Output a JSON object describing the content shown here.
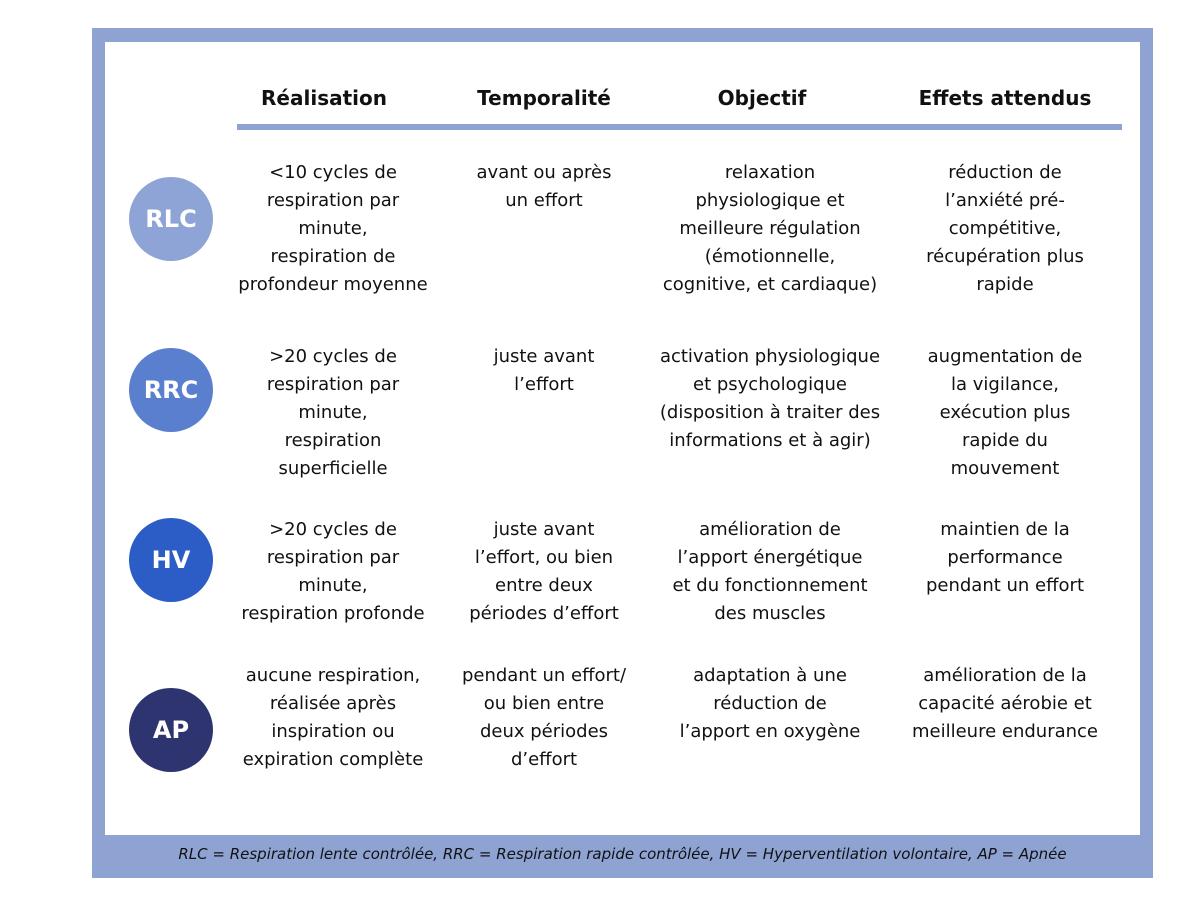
{
  "headers": [
    "Réalisation",
    "Temporalité",
    "Objectif",
    "Effets attendus"
  ],
  "rows": [
    {
      "abbr": "RLC",
      "color": "#8ea4d6",
      "realisation": "<10 cycles de\nrespiration par\nminute,\nrespiration de\nprofondeur moyenne",
      "temporalite": "avant ou après\nun effort",
      "objectif": "relaxation\nphysiologique et\nmeilleure régulation\n(émotionnelle,\ncognitive, et cardiaque)",
      "effets": "réduction de\nl’anxiété pré-\ncompétitive,\nrécupération plus\nrapide"
    },
    {
      "abbr": "RRC",
      "color": "#5b7fcf",
      "realisation": ">20 cycles de\nrespiration par\nminute,\nrespiration\nsuperficielle",
      "temporalite": "juste avant\nl’effort",
      "objectif": "activation physiologique\net psychologique\n(disposition à traiter des\ninformations et à agir)",
      "effets": "augmentation de\nla vigilance,\nexécution plus\nrapide du\nmouvement"
    },
    {
      "abbr": "HV",
      "color": "#2c5cc5",
      "realisation": ">20 cycles de\nrespiration par\nminute,\nrespiration profonde",
      "temporalite": "juste avant\nl’effort, ou bien\nentre deux\npériodes d’effort",
      "objectif": "amélioration de\nl’apport énergétique\net du fonctionnement\ndes muscles",
      "effets": "maintien de la\nperformance\npendant un effort"
    },
    {
      "abbr": "AP",
      "color": "#2e3470",
      "realisation": "aucune respiration,\nréalisée après\ninspiration ou\nexpiration complète",
      "temporalite": "pendant un effort/\nou bien entre\ndeux périodes\nd’effort",
      "objectif": "adaptation à une\nréduction de\nl’apport en oxygène",
      "effets": "amélioration de la\ncapacité aérobie et\nmeilleure endurance"
    }
  ],
  "legend": "RLC = Respiration lente contrôlée, RRC = Respiration rapide contrôlée, HV = Hyperventilation volontaire, AP = Apnée",
  "colors": {
    "frame": "#8fa3d3"
  }
}
